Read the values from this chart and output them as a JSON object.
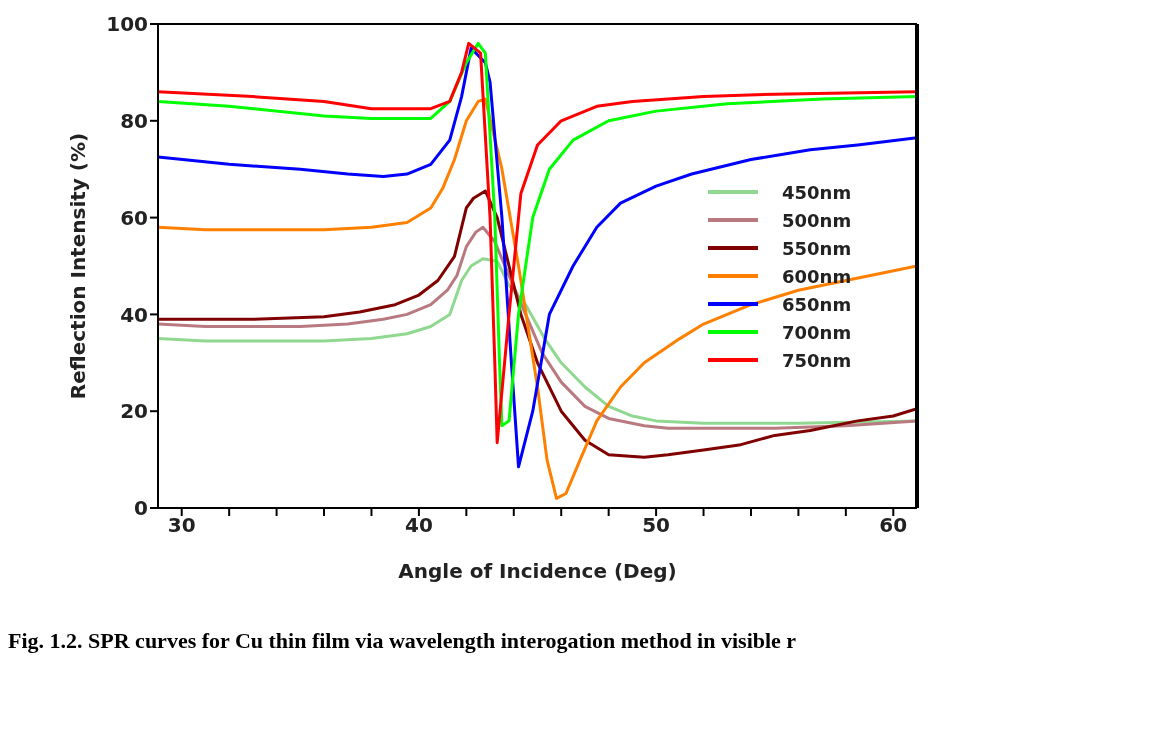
{
  "chart_data": {
    "type": "line",
    "xlabel": "Angle of Incidence (Deg)",
    "ylabel": "Reflection Intensity (%)",
    "xlim": [
      29,
      61
    ],
    "ylim": [
      0,
      100
    ],
    "xticks": [
      30,
      {
        "value": 32,
        "label": null
      },
      {
        "value": 34,
        "label": null
      },
      {
        "value": 36,
        "label": null
      },
      {
        "value": 38,
        "label": null
      },
      40,
      {
        "value": 42,
        "label": null
      },
      {
        "value": 44,
        "label": null
      },
      {
        "value": 46,
        "label": null
      },
      {
        "value": 48,
        "label": null
      },
      50,
      {
        "value": 52,
        "label": null
      },
      {
        "value": 54,
        "label": null
      },
      {
        "value": 56,
        "label": null
      },
      {
        "value": 58,
        "label": null
      },
      60
    ],
    "yticks": [
      0,
      20,
      40,
      60,
      80,
      100
    ],
    "legend": "right",
    "marker": "none",
    "line_style": "solid",
    "annotations": [
      "Fig. 1.2. SPR curves for Cu thin film via wavelength interogation method in visible r"
    ],
    "series": [
      {
        "name": "450nm",
        "color": "#90d890",
        "x": [
          29,
          31,
          36,
          38,
          39.5,
          40.5,
          41.3,
          41.8,
          42.2,
          42.7,
          43.3,
          43.8,
          44.5,
          45.3,
          46,
          47,
          48,
          49,
          50,
          52,
          56,
          61
        ],
        "values": [
          35,
          34.5,
          34.5,
          35,
          36,
          37.5,
          40,
          47,
          50,
          51.5,
          51,
          46,
          42,
          35,
          30,
          25,
          21,
          19,
          18,
          17.5,
          17.5,
          18
        ]
      },
      {
        "name": "500nm",
        "color": "#b87a80",
        "x": [
          29,
          31,
          35,
          37,
          38.5,
          39.5,
          40.5,
          41.2,
          41.6,
          42,
          42.4,
          42.7,
          43.2,
          43.8,
          44.5,
          45.2,
          46,
          47,
          48,
          49.5,
          50.5,
          55,
          58,
          61
        ],
        "values": [
          38,
          37.5,
          37.5,
          38,
          39,
          40,
          42,
          45,
          48,
          54,
          57,
          58,
          55,
          48,
          40,
          32,
          26,
          21,
          18.5,
          17,
          16.5,
          16.5,
          17,
          18
        ]
      },
      {
        "name": "550nm",
        "color": "#800000",
        "x": [
          29,
          33,
          36,
          37.5,
          39,
          40,
          40.8,
          41.5,
          42,
          42.3,
          42.8,
          43.3,
          43.8,
          44.3,
          45,
          46,
          47,
          48,
          49.5,
          50.5,
          52,
          53.5,
          55,
          56.5,
          58.5,
          60,
          61
        ],
        "values": [
          39,
          39,
          39.5,
          40.5,
          42,
          44,
          47,
          52,
          62,
          64,
          65.5,
          60,
          50,
          40,
          30,
          20,
          14,
          11,
          10.5,
          11,
          12,
          13,
          15,
          16,
          18,
          19,
          20.5
        ]
      },
      {
        "name": "600nm",
        "color": "#ff8000",
        "x": [
          29,
          31,
          36,
          38,
          39.5,
          40.5,
          41,
          41.5,
          42,
          42.5,
          42.8,
          43.5,
          44.2,
          45,
          45.4,
          45.8,
          46.2,
          46.8,
          47.5,
          48.5,
          49.5,
          51,
          52,
          54,
          56,
          58,
          59.5,
          61
        ],
        "values": [
          58,
          57.5,
          57.5,
          58,
          59,
          62,
          66,
          72,
          80,
          84,
          84.5,
          70,
          50,
          25,
          10,
          2,
          3,
          10,
          18,
          25,
          30,
          35,
          38,
          42,
          45,
          47,
          48.5,
          50
        ]
      },
      {
        "name": "650nm",
        "color": "#0000ff",
        "x": [
          29,
          32,
          35,
          37,
          38.5,
          39.5,
          40.5,
          41.3,
          41.8,
          42.2,
          42.8,
          43,
          43.5,
          43.9,
          44.2,
          44.8,
          45.5,
          46.5,
          47.5,
          48.5,
          50,
          51.5,
          54,
          56.5,
          58.5,
          61
        ],
        "values": [
          72.5,
          71,
          70,
          69,
          68.5,
          69,
          71,
          76,
          85,
          95,
          92,
          88,
          60,
          30,
          8.5,
          20,
          40,
          50,
          58,
          63,
          66.5,
          69,
          72,
          74,
          75,
          76.5
        ]
      },
      {
        "name": "700nm",
        "color": "#00ff00",
        "x": [
          29,
          32,
          36,
          38,
          40.5,
          41.3,
          42,
          42.5,
          42.8,
          43.2,
          43.4,
          43.5,
          43.8,
          44.2,
          44.8,
          45.5,
          46.5,
          48,
          50,
          53,
          57,
          61
        ],
        "values": [
          84,
          83,
          81,
          80.5,
          80.5,
          84,
          92,
          96,
          94,
          60,
          30,
          17,
          18,
          40,
          60,
          70,
          76,
          80,
          82,
          83.5,
          84.5,
          85
        ]
      },
      {
        "name": "750nm",
        "color": "#ff0000",
        "x": [
          29,
          33,
          36,
          38,
          40.5,
          41.3,
          41.8,
          42.1,
          42.6,
          43,
          43.2,
          43.3,
          43.8,
          44.3,
          45,
          46,
          47.5,
          49,
          52,
          55,
          61
        ],
        "values": [
          86,
          85,
          84,
          82.5,
          82.5,
          84,
          90,
          96,
          94,
          60,
          30,
          13.5,
          40,
          65,
          75,
          80,
          83,
          84,
          85,
          85.5,
          86
        ]
      }
    ]
  }
}
